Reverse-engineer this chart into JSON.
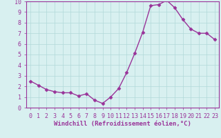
{
  "x": [
    0,
    1,
    2,
    3,
    4,
    5,
    6,
    7,
    8,
    9,
    10,
    11,
    12,
    13,
    14,
    15,
    16,
    17,
    18,
    19,
    20,
    21,
    22,
    23
  ],
  "y": [
    2.5,
    2.1,
    1.7,
    1.5,
    1.4,
    1.4,
    1.1,
    1.3,
    0.7,
    0.4,
    1.0,
    1.8,
    3.3,
    5.1,
    7.1,
    9.6,
    9.7,
    10.1,
    9.4,
    8.3,
    7.4,
    7.0,
    7.0,
    6.4
  ],
  "line_color": "#993399",
  "marker": "D",
  "markersize": 2.5,
  "linewidth": 1.0,
  "background_color": "#d8f0f0",
  "grid_color": "#b0d8d8",
  "xlabel": "Windchill (Refroidissement éolien,°C)",
  "xlabel_color": "#993399",
  "xlabel_fontsize": 6.5,
  "tick_color": "#993399",
  "tick_fontsize": 6,
  "ylim": [
    0,
    10
  ],
  "yticks": [
    0,
    1,
    2,
    3,
    4,
    5,
    6,
    7,
    8,
    9,
    10
  ],
  "xlim": [
    -0.5,
    23.5
  ],
  "xticks": [
    0,
    1,
    2,
    3,
    4,
    5,
    6,
    7,
    8,
    9,
    10,
    11,
    12,
    13,
    14,
    15,
    16,
    17,
    18,
    19,
    20,
    21,
    22,
    23
  ],
  "spine_color": "#993399",
  "figsize": [
    3.2,
    2.0
  ],
  "dpi": 100
}
